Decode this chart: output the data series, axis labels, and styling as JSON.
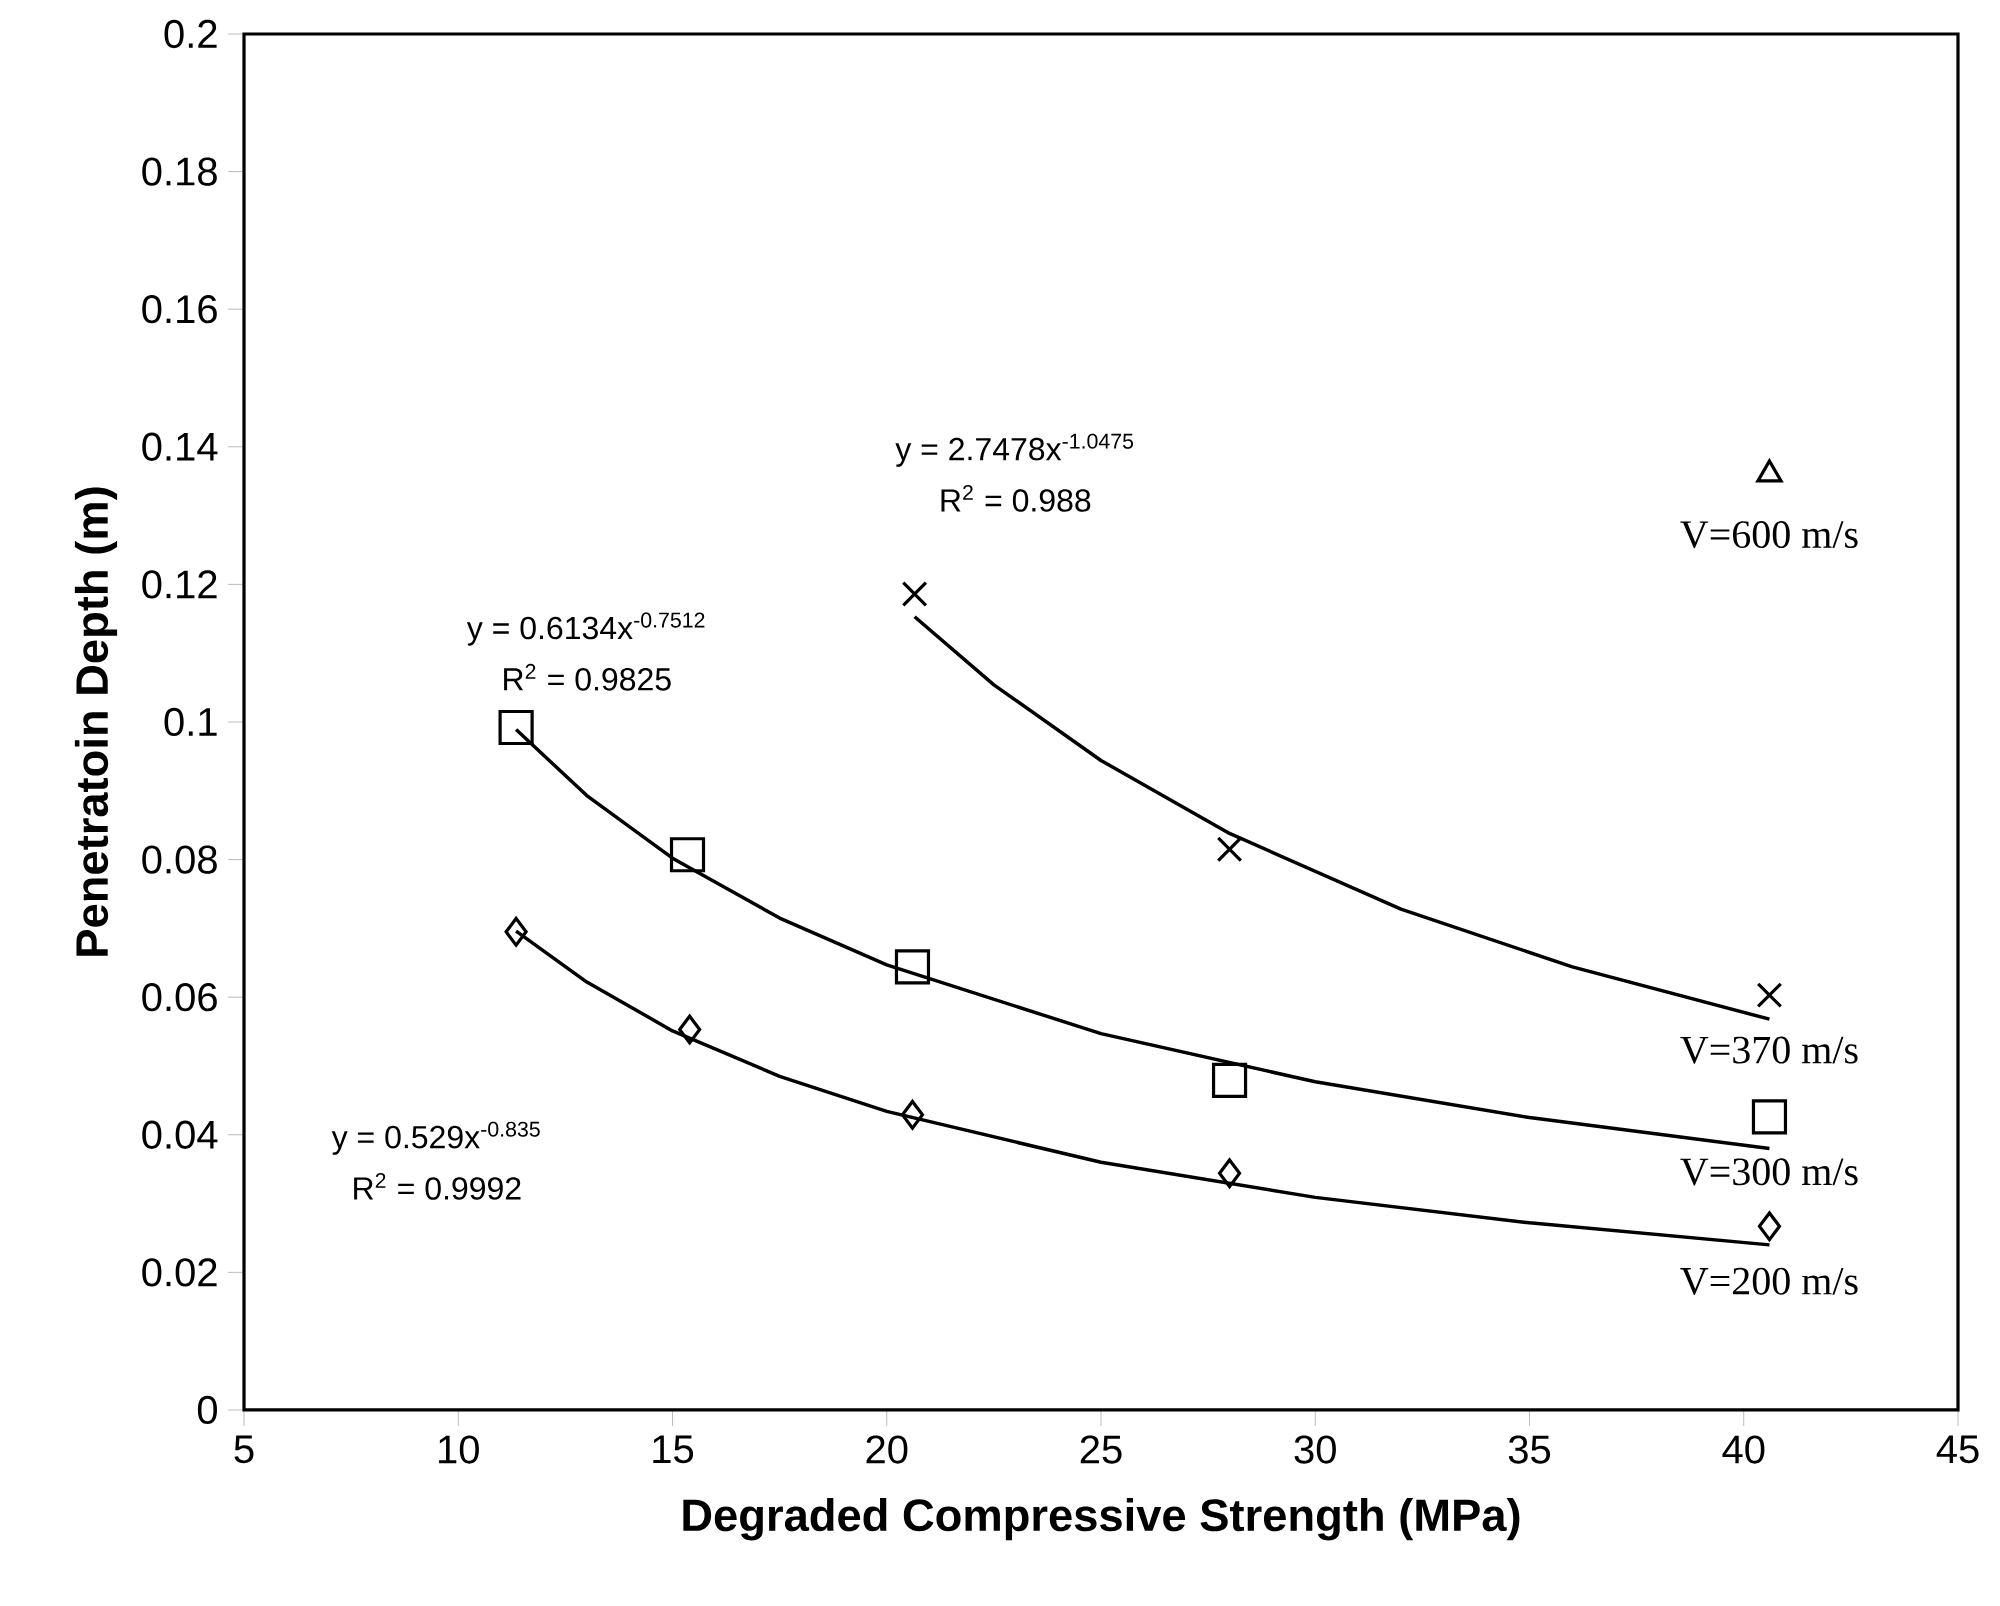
{
  "chart_data": {
    "type": "scatter",
    "xlabel": "Degraded Compressive Strength (MPa)",
    "ylabel": "Penetratoin Depth (m)",
    "xlim": [
      5,
      45
    ],
    "xticks": [
      5,
      10,
      15,
      20,
      25,
      30,
      35,
      40,
      45
    ],
    "ylim": [
      0,
      0.2
    ],
    "yticks": [
      0,
      0.02,
      0.04,
      0.06,
      0.08,
      0.1,
      0.12,
      0.14,
      0.16,
      0.18,
      0.2
    ],
    "grid": false,
    "legend": false,
    "series": [
      {
        "name": "V=200 m/s",
        "marker": "diamond",
        "color": "#000000",
        "x": [
          11.35,
          15.4,
          20.6,
          28.0,
          40.6
        ],
        "values": [
          0.0695,
          0.0553,
          0.0429,
          0.0344,
          0.0267
        ]
      },
      {
        "name": "V=300 m/s",
        "marker": "square",
        "color": "#000000",
        "x": [
          11.35,
          15.35,
          20.6,
          28.0,
          40.6
        ],
        "values": [
          0.0992,
          0.0807,
          0.0644,
          0.0479,
          0.0426
        ]
      },
      {
        "name": "V=370 m/s",
        "marker": "cross",
        "color": "#000000",
        "x": [
          20.65,
          28.0,
          40.6
        ],
        "values": [
          0.1186,
          0.0815,
          0.0603
        ]
      },
      {
        "name": "V=600 m/s",
        "marker": "triangle",
        "color": "#000000",
        "x": [
          40.6
        ],
        "values": [
          0.136
        ]
      },
      {
        "type": "line",
        "marker": "none",
        "line_style": "solid",
        "color": "#000000",
        "x": [
          11.35,
          13,
          15,
          17.5,
          20,
          25,
          30,
          35,
          40.6
        ],
        "values": [
          0.0696,
          0.0622,
          0.0551,
          0.0485,
          0.0434,
          0.036,
          0.0309,
          0.0272,
          0.024
        ]
      },
      {
        "type": "line",
        "marker": "none",
        "line_style": "solid",
        "color": "#000000",
        "x": [
          11.35,
          13,
          15,
          17.5,
          20,
          25,
          30,
          35,
          40.6
        ],
        "values": [
          0.0989,
          0.0893,
          0.0802,
          0.0715,
          0.0647,
          0.0547,
          0.0477,
          0.0425,
          0.038
        ]
      },
      {
        "type": "line",
        "marker": "none",
        "line_style": "solid",
        "color": "#000000",
        "x": [
          20.65,
          22.5,
          25,
          28,
          32,
          36,
          40.6
        ],
        "values": [
          0.1153,
          0.1054,
          0.0944,
          0.0838,
          0.0728,
          0.0644,
          0.0568
        ]
      }
    ],
    "annotations": [
      "y = 0.529x$^{-0.835}$",
      "R$^{2}$ = 0.9992",
      "y = 0.6134x$^{-0.7512}$",
      "R$^{2}$ = 0.9825",
      "y = 2.7478x$^{-1.0475}$",
      "R$^{2}$ = 0.988"
    ]
  }
}
